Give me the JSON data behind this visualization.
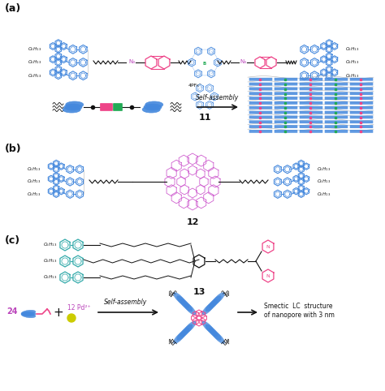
{
  "bg_color": "#ffffff",
  "label_a": "(a)",
  "label_b": "(b)",
  "label_c": "(c)",
  "compound_11": "11",
  "compound_12": "12",
  "compound_13": "13",
  "self_assembly": "Self-assembly",
  "pd_label": "12 Pd²⁺",
  "mol_label": "24",
  "smectic_text": "Smectic  LC  structure\nof nanopore with 3 nm",
  "color_blue": "#4488DD",
  "color_cyan": "#33AAAA",
  "color_pink": "#EE4488",
  "color_purple": "#BB44BB",
  "color_green": "#22AA55",
  "color_black": "#111111",
  "color_yellow": "#CCCC00",
  "color_orchid": "#CC55CC",
  "color_gray": "#999999"
}
